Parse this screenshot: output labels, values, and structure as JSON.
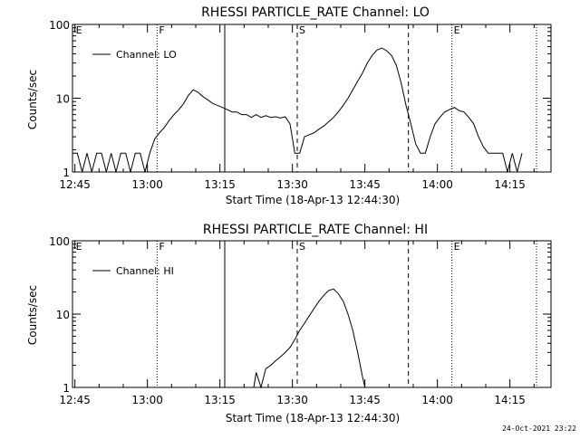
{
  "chart_data": [
    {
      "type": "line",
      "title": "RHESSI PARTICLE_RATE Channel: LO",
      "xlabel": "Start Time (18-Apr-13 12:44:30)",
      "ylabel": "Counts/sec",
      "yscale": "log",
      "ylim": [
        1,
        100
      ],
      "xlim_minutes": [
        0,
        99
      ],
      "x_tick_labels": [
        "12:45",
        "13:00",
        "13:15",
        "13:30",
        "13:45",
        "14:00",
        "14:15"
      ],
      "y_tick_labels": [
        "1",
        "10",
        "100"
      ],
      "legend": "top-left",
      "series": [
        {
          "name": "Channel: LO",
          "x": [
            0,
            1,
            2,
            3,
            4,
            5,
            6,
            7,
            8,
            9,
            10,
            11,
            12,
            13,
            14,
            15,
            16,
            17,
            18,
            19,
            20,
            21,
            22,
            23,
            24,
            25,
            26,
            27,
            28,
            29,
            30,
            31,
            32,
            33,
            34,
            35,
            36,
            37,
            38,
            39,
            40,
            41,
            42,
            43,
            44,
            45,
            46,
            47,
            48,
            49,
            50,
            51,
            52,
            53,
            54,
            55,
            56,
            57,
            58,
            59,
            60,
            61,
            62,
            63,
            64,
            65,
            66,
            67,
            68,
            69,
            70,
            71,
            72,
            73,
            74,
            75,
            76,
            77,
            78,
            79,
            80,
            81,
            82,
            83,
            84,
            85,
            86,
            87,
            88,
            89,
            90,
            91,
            92,
            93
          ],
          "y": [
            1.8,
            1.8,
            1,
            1.8,
            1,
            1.8,
            1.8,
            1,
            1.8,
            1,
            1.8,
            1.8,
            1,
            1.8,
            1.8,
            1,
            1.8,
            2.8,
            3.4,
            4,
            5,
            6,
            7,
            8.5,
            11,
            13,
            12,
            10.5,
            9.5,
            8.5,
            8,
            7.5,
            7,
            6.5,
            6.5,
            6,
            6,
            5.5,
            6,
            5.5,
            5.8,
            5.5,
            5.6,
            5.4,
            5.6,
            4.5,
            1.8,
            1.8,
            3,
            3.2,
            3.4,
            3.8,
            4.2,
            4.8,
            5.5,
            6.5,
            8,
            10,
            13,
            17,
            22,
            30,
            38,
            45,
            48,
            44,
            38,
            28,
            16,
            8,
            4.5,
            2.4,
            1.8,
            1.8,
            3,
            4.5,
            5.5,
            6.5,
            7,
            7.5,
            6.8,
            6.5,
            5.5,
            4.5,
            3,
            2.2,
            1.8,
            1.8,
            1.8,
            1.8,
            1,
            1.8,
            1,
            1.8
          ]
        }
      ],
      "annotations": [
        "E",
        "F",
        "S",
        "E"
      ]
    },
    {
      "type": "line",
      "title": "RHESSI PARTICLE_RATE Channel: HI",
      "xlabel": "Start Time (18-Apr-13 12:44:30)",
      "ylabel": "Counts/sec",
      "yscale": "log",
      "ylim": [
        1,
        100
      ],
      "xlim_minutes": [
        0,
        99
      ],
      "x_tick_labels": [
        "12:45",
        "13:00",
        "13:15",
        "13:30",
        "13:45",
        "14:00",
        "14:15"
      ],
      "y_tick_labels": [
        "1",
        "10",
        "100"
      ],
      "legend": "top-left",
      "series": [
        {
          "name": "Channel: HI",
          "x": [
            37.5,
            38,
            39,
            40,
            41,
            42,
            43,
            44,
            45,
            46,
            47,
            48,
            49,
            50,
            51,
            52,
            53,
            54,
            55,
            56,
            57,
            58,
            59,
            60,
            60.5
          ],
          "y": [
            1,
            1.6,
            1,
            1.8,
            2,
            2.3,
            2.6,
            3,
            3.5,
            4.5,
            6,
            7.5,
            9.5,
            12,
            15,
            18,
            21,
            22,
            19,
            15,
            10,
            6,
            3,
            1.4,
            1
          ]
        }
      ],
      "annotations": [
        "E",
        "F",
        "S",
        "E"
      ]
    }
  ],
  "footer": "24-Oct-2021 23:22"
}
